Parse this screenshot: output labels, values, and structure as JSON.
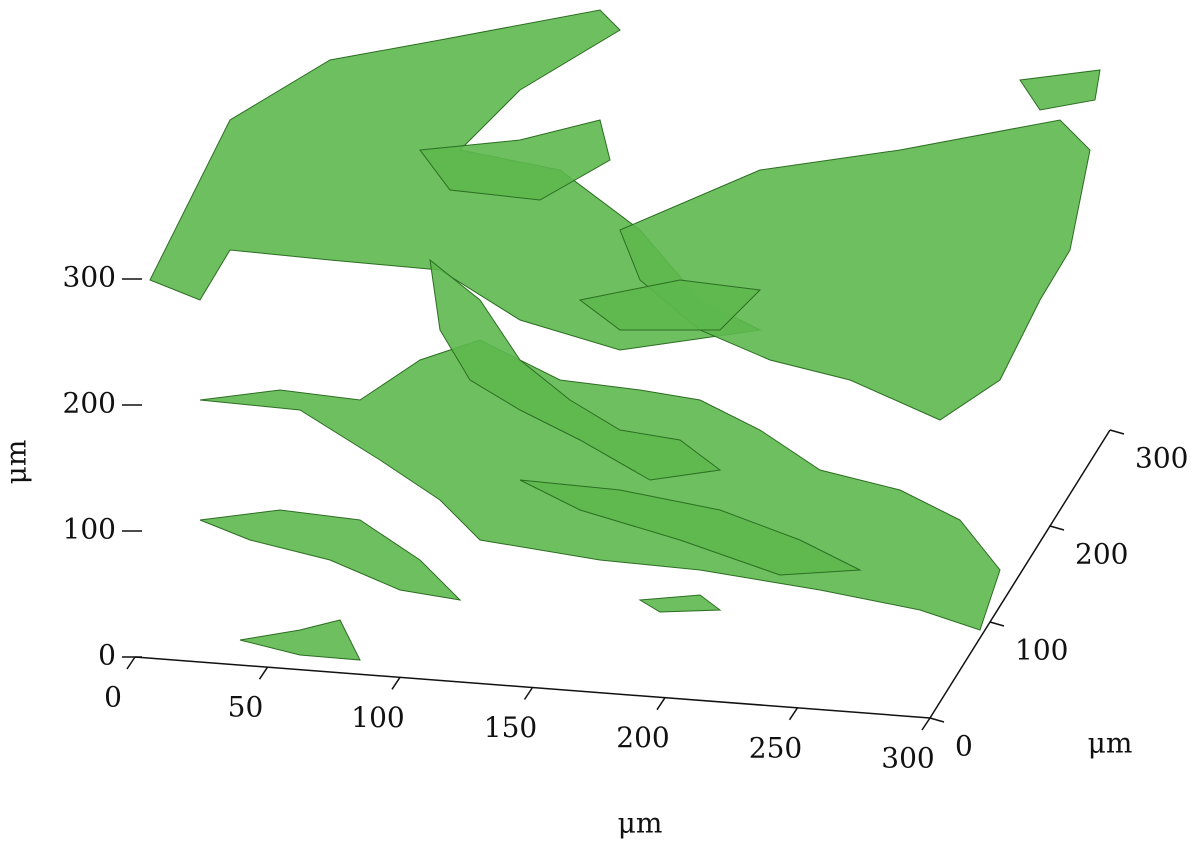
{
  "chart_data": {
    "type": "volume",
    "xlabel": "μm",
    "ylabel": "μm",
    "zlabel": "μm",
    "xlim": [
      0,
      300
    ],
    "xticks": [
      0,
      50,
      100,
      150,
      200,
      250,
      300
    ],
    "ylim": [
      0,
      300
    ],
    "yticks": [
      0,
      100,
      200,
      300
    ],
    "zlim": [
      0,
      300
    ],
    "zticks": [
      0,
      100,
      200,
      300
    ],
    "color": "#5db84e"
  }
}
